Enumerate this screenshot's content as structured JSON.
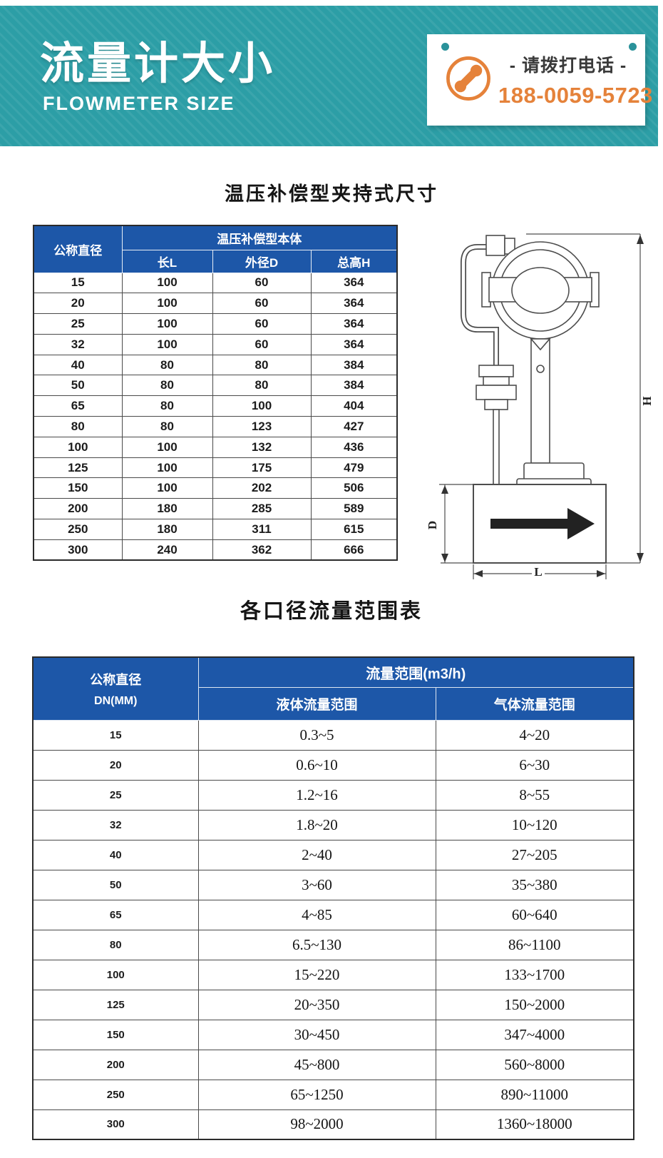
{
  "banner": {
    "title": "流量计大小",
    "subtitle": "FLOWMETER SIZE",
    "phone": {
      "icon": "phone-icon",
      "label": "- 请拨打电话 -",
      "number": "188-0059-5723"
    }
  },
  "section_dimensions": {
    "title": "温压补偿型夹持式尺寸",
    "table": {
      "diameter_header": "公称直径",
      "group_header": "温压补偿型本体",
      "sub_headers": [
        "长L",
        "外径D",
        "总高H"
      ],
      "rows": [
        [
          "15",
          "100",
          "60",
          "364"
        ],
        [
          "20",
          "100",
          "60",
          "364"
        ],
        [
          "25",
          "100",
          "60",
          "364"
        ],
        [
          "32",
          "100",
          "60",
          "364"
        ],
        [
          "40",
          "80",
          "80",
          "384"
        ],
        [
          "50",
          "80",
          "80",
          "384"
        ],
        [
          "65",
          "80",
          "100",
          "404"
        ],
        [
          "80",
          "80",
          "123",
          "427"
        ],
        [
          "100",
          "100",
          "132",
          "436"
        ],
        [
          "125",
          "100",
          "175",
          "479"
        ],
        [
          "150",
          "100",
          "202",
          "506"
        ],
        [
          "200",
          "180",
          "285",
          "589"
        ],
        [
          "250",
          "180",
          "311",
          "615"
        ],
        [
          "300",
          "240",
          "362",
          "666"
        ]
      ]
    },
    "diagram_labels": {
      "height": "H",
      "diameter": "D",
      "length": "L"
    }
  },
  "section_flow": {
    "title": "各口径流量范围表",
    "table": {
      "diameter_header_line1": "公称直径",
      "diameter_header_line2": "DN(MM)",
      "group_header": "流量范围(m3/h)",
      "sub_headers": [
        "液体流量范围",
        "气体流量范围"
      ],
      "rows": [
        {
          "dn": "15",
          "liquid": "0.3~5",
          "gas": "4~20"
        },
        {
          "dn": "20",
          "liquid": "0.6~10",
          "gas": "6~30"
        },
        {
          "dn": "25",
          "liquid": "1.2~16",
          "gas": "8~55"
        },
        {
          "dn": "32",
          "liquid": "1.8~20",
          "gas": "10~120"
        },
        {
          "dn": "40",
          "liquid": "2~40",
          "gas": "27~205"
        },
        {
          "dn": "50",
          "liquid": "3~60",
          "gas": "35~380"
        },
        {
          "dn": "65",
          "liquid": "4~85",
          "gas": "60~640"
        },
        {
          "dn": "80",
          "liquid": "6.5~130",
          "gas": "86~1100"
        },
        {
          "dn": "100",
          "liquid": "15~220",
          "gas": "133~1700"
        },
        {
          "dn": "125",
          "liquid": "20~350",
          "gas": "150~2000"
        },
        {
          "dn": "150",
          "liquid": "30~450",
          "gas": "347~4000"
        },
        {
          "dn": "200",
          "liquid": "45~800",
          "gas": "560~8000"
        },
        {
          "dn": "250",
          "liquid": "65~1250",
          "gas": "890~11000"
        },
        {
          "dn": "300",
          "liquid": "98~2000",
          "gas": "1360~18000"
        }
      ]
    }
  },
  "colors": {
    "teal": "#2c9ea6",
    "header_blue": "#1d57a8",
    "orange": "#e5823a"
  }
}
